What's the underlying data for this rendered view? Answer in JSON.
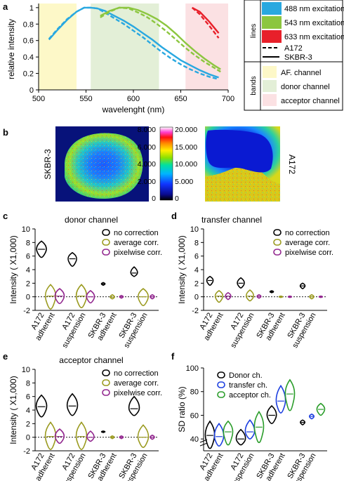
{
  "colors": {
    "blue": "#29a8e0",
    "green": "#8cc63f",
    "red": "#e8202a",
    "af_band": "#fdf8c8",
    "donor_band": "#e3efd7",
    "acceptor_band": "#fbe1e3",
    "no_correction": "#000000",
    "average_corr": "#9a9a1e",
    "pixelwise_corr": "#92278f",
    "donor_ch": "#000000",
    "transfer_ch": "#1c3fe0",
    "acceptor_ch": "#2a9d2a"
  },
  "panel_labels": [
    "a",
    "b",
    "c",
    "d",
    "e",
    "f"
  ],
  "panel_a": {
    "xlabel": "wavelenght (nm)",
    "ylabel": "relative intensity",
    "xticks": [
      "500",
      "550",
      "600",
      "650",
      "700"
    ],
    "yticks": [
      "0",
      "0.2",
      "0.4",
      "0.6",
      "0.8",
      "1"
    ],
    "legend": {
      "lines_title": "lines",
      "bands_title": "bands",
      "excitations": [
        "488 nm excitation",
        "543 nm excitation",
        "633 nm excitation"
      ],
      "line_styles": [
        "A172",
        "SKBR-3"
      ],
      "bands": [
        "AF. channel",
        "donor channel",
        "acceptor channel"
      ]
    }
  },
  "panel_b": {
    "left_label": "SKBR-3",
    "right_label": "A172",
    "colorbar_left": [
      "8.000",
      "6.000",
      "4.000",
      "2.000",
      "0"
    ],
    "colorbar_right": [
      "20.000",
      "15.000",
      "10.000",
      "5.000",
      "0"
    ]
  },
  "violin_common": {
    "ylabel": "Intensity ( X1,000)",
    "yticks": [
      "-2",
      "0",
      "2",
      "4",
      "6",
      "8",
      "10"
    ],
    "x_top": [
      "A172",
      "A172",
      "SKBR-3",
      "SKBR-3"
    ],
    "x_bottom": [
      "adherent",
      "suspension",
      "adherent",
      "suspension"
    ],
    "legend": [
      "no correction",
      "average corr.",
      "pixelwise corr."
    ]
  },
  "panel_c": {
    "title": "donor channel"
  },
  "panel_d": {
    "title": "transfer channel"
  },
  "panel_e": {
    "title": "acceptor channel"
  },
  "panel_f": {
    "ylabel": "SD ratio (%)",
    "yticks": [
      "40",
      "60",
      "80",
      "100"
    ],
    "legend": [
      "Donor ch.",
      "transfer ch.",
      "acceptor ch."
    ]
  },
  "chart_data": [
    {
      "panel": "a",
      "type": "line",
      "xlabel": "wavelenght (nm)",
      "ylabel": "relative intensity",
      "xlim": [
        500,
        700
      ],
      "ylim": [
        0,
        1.05
      ],
      "bands": [
        {
          "name": "AF. channel",
          "range": [
            500,
            540
          ]
        },
        {
          "name": "donor channel",
          "range": [
            555,
            627
          ]
        },
        {
          "name": "acceptor channel",
          "range": [
            655,
            700
          ]
        }
      ],
      "series": [
        {
          "name": "488 nm excitation",
          "style": "A172",
          "x": [
            511,
            520,
            530,
            540,
            548,
            555,
            562,
            570,
            580,
            590,
            600,
            610,
            620,
            630,
            640,
            650,
            660,
            670,
            680,
            690
          ],
          "y": [
            0.62,
            0.74,
            0.86,
            0.95,
            1.0,
            1.0,
            0.99,
            0.94,
            0.87,
            0.8,
            0.72,
            0.64,
            0.55,
            0.46,
            0.38,
            0.31,
            0.25,
            0.2,
            0.16,
            0.13
          ]
        },
        {
          "name": "488 nm excitation",
          "style": "SKBR-3",
          "x": [
            511,
            520,
            530,
            540,
            548,
            555,
            562,
            570,
            580,
            590,
            600,
            610,
            620,
            630,
            640,
            650,
            660,
            670,
            680,
            690
          ],
          "y": [
            0.61,
            0.73,
            0.85,
            0.95,
            1.0,
            1.0,
            0.99,
            0.96,
            0.9,
            0.84,
            0.77,
            0.69,
            0.61,
            0.52,
            0.44,
            0.36,
            0.3,
            0.24,
            0.19,
            0.15
          ]
        },
        {
          "name": "543 nm excitation",
          "style": "A172",
          "x": [
            565,
            575,
            585,
            595,
            605,
            615,
            625,
            635,
            645,
            655,
            665,
            675,
            685,
            692
          ],
          "y": [
            0.88,
            0.95,
            1.0,
            0.99,
            0.94,
            0.88,
            0.8,
            0.71,
            0.61,
            0.51,
            0.42,
            0.34,
            0.27,
            0.22
          ]
        },
        {
          "name": "543 nm excitation",
          "style": "SKBR-3",
          "x": [
            565,
            575,
            585,
            595,
            605,
            615,
            625,
            635,
            645,
            655,
            665,
            675,
            685,
            692
          ],
          "y": [
            0.9,
            0.96,
            1.0,
            1.0,
            0.97,
            0.92,
            0.86,
            0.78,
            0.68,
            0.57,
            0.47,
            0.38,
            0.3,
            0.25
          ]
        },
        {
          "name": "633 nm excitation",
          "style": "A172",
          "x": [
            662,
            670,
            680,
            690
          ],
          "y": [
            1.0,
            0.92,
            0.78,
            0.63
          ]
        },
        {
          "name": "633 nm excitation",
          "style": "SKBR-3",
          "x": [
            662,
            670,
            680,
            690
          ],
          "y": [
            1.0,
            0.95,
            0.83,
            0.69
          ]
        }
      ]
    },
    {
      "panel": "c",
      "type": "violin",
      "title": "donor channel",
      "ylabel": "Intensity ( X1,000)",
      "ylim": [
        -2,
        10
      ],
      "groups": [
        "A172 adherent",
        "A172 suspension",
        "SKBR-3 adherent",
        "SKBR-3 suspension"
      ],
      "series": [
        {
          "name": "no correction",
          "ranges": [
            [
              5.8,
              8.2
            ],
            [
              4.5,
              6.5
            ],
            [
              1.7,
              2.1
            ],
            [
              3.0,
              4.4
            ]
          ],
          "centers": [
            7.0,
            5.6,
            1.9,
            3.5
          ]
        },
        {
          "name": "average corr.",
          "ranges": [
            [
              -1.8,
              1.8
            ],
            [
              -1.6,
              1.8
            ],
            [
              -0.3,
              0.3
            ],
            [
              -1.3,
              1.2
            ]
          ],
          "centers": [
            0.1,
            0.1,
            -0.05,
            0.0
          ]
        },
        {
          "name": "pixelwise corr.",
          "ranges": [
            [
              -1.0,
              1.2
            ],
            [
              -0.9,
              0.9
            ],
            [
              -0.2,
              0.2
            ],
            [
              -0.3,
              0.3
            ]
          ],
          "centers": [
            0.1,
            0.0,
            0.0,
            0.0
          ]
        }
      ]
    },
    {
      "panel": "d",
      "type": "violin",
      "title": "transfer channel",
      "ylabel": "Intensity ( X1,000)",
      "ylim": [
        -2,
        10
      ],
      "groups": [
        "A172 adherent",
        "A172 suspension",
        "SKBR-3 adherent",
        "SKBR-3 suspension"
      ],
      "series": [
        {
          "name": "no correction",
          "ranges": [
            [
              1.7,
              3.0
            ],
            [
              1.3,
              2.8
            ],
            [
              0.6,
              0.9
            ],
            [
              1.2,
              2.0
            ]
          ],
          "centers": [
            2.4,
            2.0,
            0.75,
            1.6
          ]
        },
        {
          "name": "average corr.",
          "ranges": [
            [
              -0.8,
              0.9
            ],
            [
              -0.6,
              1.0
            ],
            [
              -0.1,
              0.1
            ],
            [
              -0.3,
              0.3
            ]
          ],
          "centers": [
            0.1,
            0.1,
            0.0,
            0.0
          ]
        },
        {
          "name": "pixelwise corr.",
          "ranges": [
            [
              -0.4,
              0.6
            ],
            [
              -0.2,
              0.3
            ],
            [
              -0.1,
              0.1
            ],
            [
              -0.1,
              0.1
            ]
          ],
          "centers": [
            0.1,
            0.05,
            0.0,
            0.0
          ]
        }
      ]
    },
    {
      "panel": "e",
      "type": "violin",
      "title": "acceptor channel",
      "ylabel": "Intensity ( X1,000)",
      "ylim": [
        -2,
        10
      ],
      "groups": [
        "A172 adherent",
        "A172 suspension",
        "SKBR-3 adherent",
        "SKBR-3 suspension"
      ],
      "series": [
        {
          "name": "no correction",
          "ranges": [
            [
              3.0,
              6.2
            ],
            [
              3.2,
              6.4
            ],
            [
              0.7,
              0.9
            ],
            [
              3.2,
              6.0
            ]
          ],
          "centers": [
            4.5,
            4.6,
            0.8,
            4.2
          ]
        },
        {
          "name": "average corr.",
          "ranges": [
            [
              -1.8,
              2.2
            ],
            [
              -1.8,
              2.2
            ],
            [
              -0.2,
              0.2
            ],
            [
              -1.5,
              1.8
            ]
          ],
          "centers": [
            0.1,
            0.1,
            0.0,
            0.0
          ]
        },
        {
          "name": "pixelwise corr.",
          "ranges": [
            [
              -0.9,
              1.2
            ],
            [
              -0.6,
              0.9
            ],
            [
              -0.2,
              0.2
            ],
            [
              -0.3,
              0.3
            ]
          ],
          "centers": [
            0.1,
            0.0,
            0.0,
            0.0
          ]
        }
      ]
    },
    {
      "panel": "f",
      "type": "violin",
      "ylabel": "SD ratio (%)",
      "ylim": [
        30,
        100
      ],
      "groups": [
        "A172 adherent",
        "A172 suspension",
        "SKBR-3 adherent",
        "SKBR-3 suspension"
      ],
      "series": [
        {
          "name": "Donor ch.",
          "ranges": [
            [
              32,
              55
            ],
            [
              35,
              48
            ],
            [
              53,
              68
            ],
            [
              52,
              56
            ]
          ],
          "centers": [
            43,
            40,
            60,
            54
          ]
        },
        {
          "name": "transfer ch.",
          "ranges": [
            [
              34,
              53
            ],
            [
              40,
              56
            ],
            [
              62,
              85
            ],
            [
              57,
              61
            ]
          ],
          "centers": [
            42,
            46,
            72,
            59
          ]
        },
        {
          "name": "acceptor ch.",
          "ranges": [
            [
              35,
              55
            ],
            [
              37,
              63
            ],
            [
              64,
              90
            ],
            [
              60,
              70
            ]
          ],
          "centers": [
            46,
            50,
            78,
            65
          ]
        }
      ]
    }
  ]
}
